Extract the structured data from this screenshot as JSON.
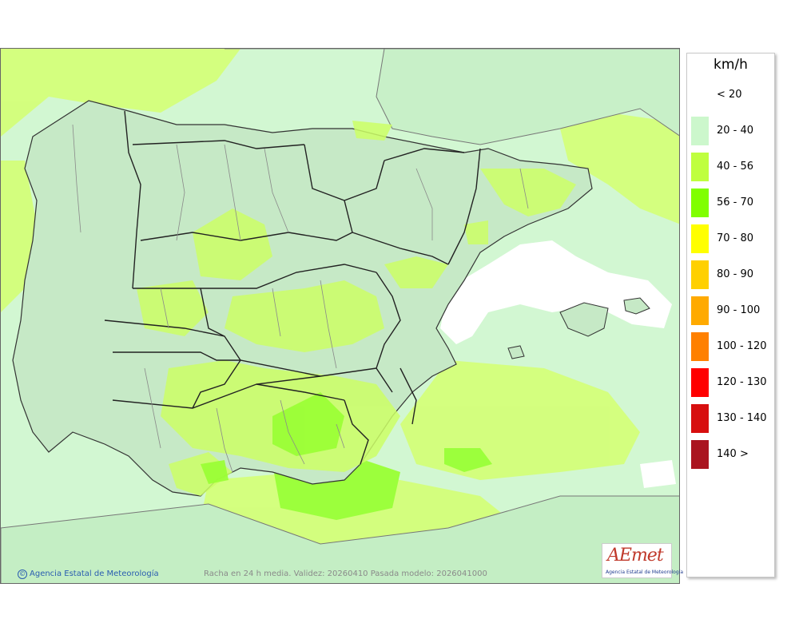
{
  "legend": {
    "unit": "km/h",
    "items": [
      {
        "label": "< 20",
        "color": "#ffffff"
      },
      {
        "label": "20 - 40",
        "color": "#ccf7cc"
      },
      {
        "label": "40 - 56",
        "color": "#bfff3f"
      },
      {
        "label": "56 - 70",
        "color": "#80ff00"
      },
      {
        "label": "70 - 80",
        "color": "#ffff00"
      },
      {
        "label": "80 - 90",
        "color": "#ffd000"
      },
      {
        "label": "90 - 100",
        "color": "#ffaa00"
      },
      {
        "label": "100 - 120",
        "color": "#ff8000"
      },
      {
        "label": "120 - 130",
        "color": "#ff0000"
      },
      {
        "label": "130 - 140",
        "color": "#d70f0f"
      },
      {
        "label": "140 >",
        "color": "#aa1520"
      }
    ]
  },
  "credit": "Agencia Estatal de Meteorología",
  "caption": "Racha en 24 h media. Validez: 20260410 Pasada modelo: 2026041000",
  "logo": {
    "main": "AEmet",
    "sub": "Agencia Estatal de Meteorología"
  },
  "colors": {
    "sea": "#d2f7d2",
    "land": "#c8e6c8",
    "band_40_56": "#ccff66",
    "band_56_70": "#99ff33",
    "calm": "#ffffff"
  }
}
